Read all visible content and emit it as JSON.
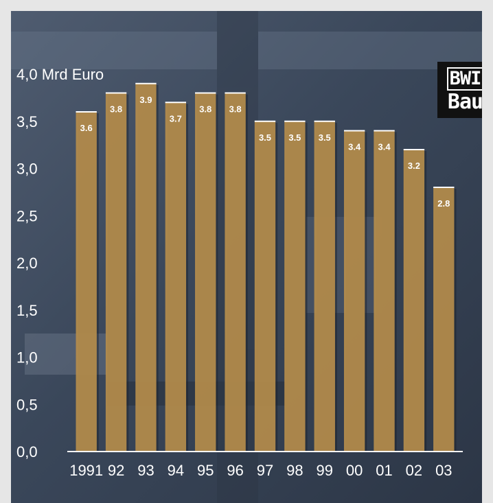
{
  "colors": {
    "background": "#3c4a5c",
    "bar_fill": "#b58d4c",
    "bar_edge": "#ffffff",
    "text": "#ffffff"
  },
  "logo": {
    "line1": "BWI",
    "line2": "Bau"
  },
  "chart_data": {
    "type": "bar",
    "title": "",
    "ylabel": "4,0 Mrd Euro",
    "xlabel": "",
    "categories": [
      "1991",
      "92",
      "93",
      "94",
      "95",
      "96",
      "97",
      "98",
      "99",
      "00",
      "01",
      "02",
      "03"
    ],
    "values": [
      3.6,
      3.8,
      3.9,
      3.7,
      3.8,
      3.8,
      3.5,
      3.5,
      3.5,
      3.4,
      3.4,
      3.2,
      2.8
    ],
    "value_labels": [
      "3.6",
      "3.8",
      "3.9",
      "3.7",
      "3.8",
      "3.8",
      "3.5",
      "3.5",
      "3.5",
      "3.4",
      "3.4",
      "3.2",
      "2.8"
    ],
    "y_ticks": [
      "0,0",
      "0,5",
      "1,0",
      "1,5",
      "2,0",
      "2,5",
      "3,0",
      "3,5"
    ],
    "y_tick_values": [
      0,
      0.5,
      1.0,
      1.5,
      2.0,
      2.5,
      3.0,
      3.5
    ],
    "ylim": [
      0,
      4.0
    ],
    "grid": false,
    "legend": "none"
  }
}
